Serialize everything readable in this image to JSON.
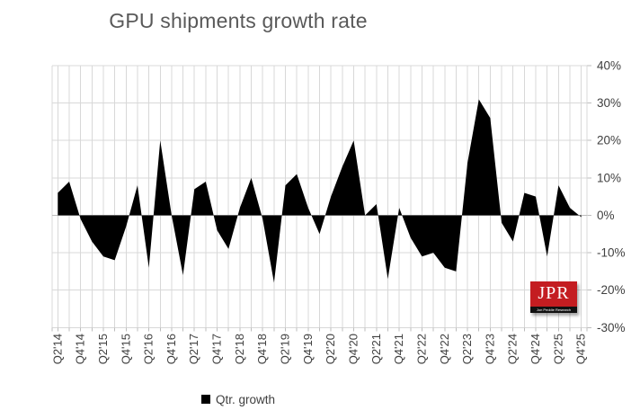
{
  "title": "GPU shipments growth rate",
  "legend": {
    "label": "Qtr. growth"
  },
  "logo": {
    "acronym": "JPR",
    "subtitle": "Jon Peddie Research",
    "bg_color": "#c41d21",
    "strip_color": "#111111",
    "text_color": "#ffffff"
  },
  "colors": {
    "series_fill": "#000000",
    "gridline": "#d8d8d8",
    "axis_line": "#bdbdbd",
    "tick_label": "#3f3f3f",
    "title_text": "#595959",
    "background": "#ffffff"
  },
  "chart_data": {
    "type": "area",
    "title": "GPU shipments growth rate",
    "categories": [
      "Q2'14",
      "Q3'14",
      "Q4'14",
      "Q1'15",
      "Q2'15",
      "Q3'15",
      "Q4'15",
      "Q1'16",
      "Q2'16",
      "Q3'16",
      "Q4'16",
      "Q1'17",
      "Q2'17",
      "Q3'17",
      "Q4'17",
      "Q1'18",
      "Q2'18",
      "Q3'18",
      "Q4'18",
      "Q1'19",
      "Q2'19",
      "Q3'19",
      "Q4'19",
      "Q1'20",
      "Q2'20",
      "Q3'20",
      "Q4'20",
      "Q1'21",
      "Q2'21",
      "Q3'21",
      "Q4'21",
      "Q1'22",
      "Q2'22",
      "Q3'22",
      "Q4'22",
      "Q1'23",
      "Q2'23",
      "Q3'23",
      "Q4'23",
      "Q1'24",
      "Q2'24",
      "Q3'24",
      "Q4'24",
      "Q1'25",
      "Q2'25",
      "Q3'25",
      "Q4'25"
    ],
    "series": [
      {
        "name": "Qtr. growth",
        "values": [
          6,
          9,
          -1,
          -7,
          -11,
          -12,
          -3,
          8,
          -14,
          20,
          0,
          -16,
          7,
          9,
          -4,
          -9,
          2,
          10,
          -1,
          -18,
          8,
          11,
          2,
          -5,
          5,
          13,
          20,
          0,
          3,
          -17,
          2,
          -6,
          -11,
          -10,
          -14,
          -15,
          14,
          31,
          26,
          -2,
          -7,
          6,
          5,
          -11,
          8,
          2,
          -0.5
        ]
      }
    ],
    "xlabel": "",
    "ylabel": "",
    "ylim": [
      -30,
      40
    ],
    "ytick_step": 10,
    "ytick_labels": [
      "40%",
      "30%",
      "20%",
      "10%",
      "0%",
      "-10%",
      "-20%",
      "-30%"
    ],
    "xtick_every": 2,
    "grid": true,
    "legend_position": "bottom"
  }
}
